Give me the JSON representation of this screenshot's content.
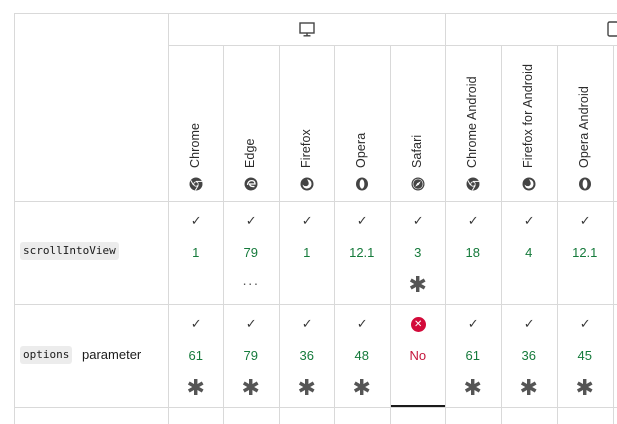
{
  "platforms": {
    "desktop": {
      "icon": "desktop-monitor-icon"
    },
    "mobile": {
      "icon": "mobile-phone-icon"
    }
  },
  "browsers": [
    {
      "name": "Chrome",
      "icon": "chrome-icon"
    },
    {
      "name": "Edge",
      "icon": "edge-icon"
    },
    {
      "name": "Firefox",
      "icon": "firefox-icon"
    },
    {
      "name": "Opera",
      "icon": "opera-icon"
    },
    {
      "name": "Safari",
      "icon": "safari-icon"
    },
    {
      "name": "Chrome Android",
      "icon": "chrome-icon"
    },
    {
      "name": "Firefox for Android",
      "icon": "firefox-icon"
    },
    {
      "name": "Opera Android",
      "icon": "opera-icon"
    }
  ],
  "rows": [
    {
      "feature_code": "scrollIntoView",
      "feature_suffix": "",
      "cells": [
        {
          "status": "yes",
          "version": "1"
        },
        {
          "status": "yes",
          "version": "79",
          "more": "···"
        },
        {
          "status": "yes",
          "version": "1"
        },
        {
          "status": "yes",
          "version": "12.1"
        },
        {
          "status": "yes",
          "version": "3",
          "note": "✱"
        },
        {
          "status": "yes",
          "version": "18"
        },
        {
          "status": "yes",
          "version": "4"
        },
        {
          "status": "yes",
          "version": "12.1"
        }
      ]
    },
    {
      "feature_code": "options",
      "feature_suffix": "parameter",
      "cells": [
        {
          "status": "yes",
          "version": "61",
          "note": "✱"
        },
        {
          "status": "yes",
          "version": "79",
          "note": "✱"
        },
        {
          "status": "yes",
          "version": "36",
          "note": "✱"
        },
        {
          "status": "yes",
          "version": "48",
          "note": "✱"
        },
        {
          "status": "no",
          "version": "No"
        },
        {
          "status": "yes",
          "version": "61",
          "note": "✱"
        },
        {
          "status": "yes",
          "version": "36",
          "note": "✱"
        },
        {
          "status": "yes",
          "version": "45",
          "note": "✱"
        }
      ]
    }
  ],
  "symbols": {
    "check": "✓",
    "cross": "✕"
  },
  "colors": {
    "supported": "#157a3b",
    "unsupported": "#c4163c",
    "border": "#d9d9d9",
    "selected_underline": "#1b1b1b"
  }
}
